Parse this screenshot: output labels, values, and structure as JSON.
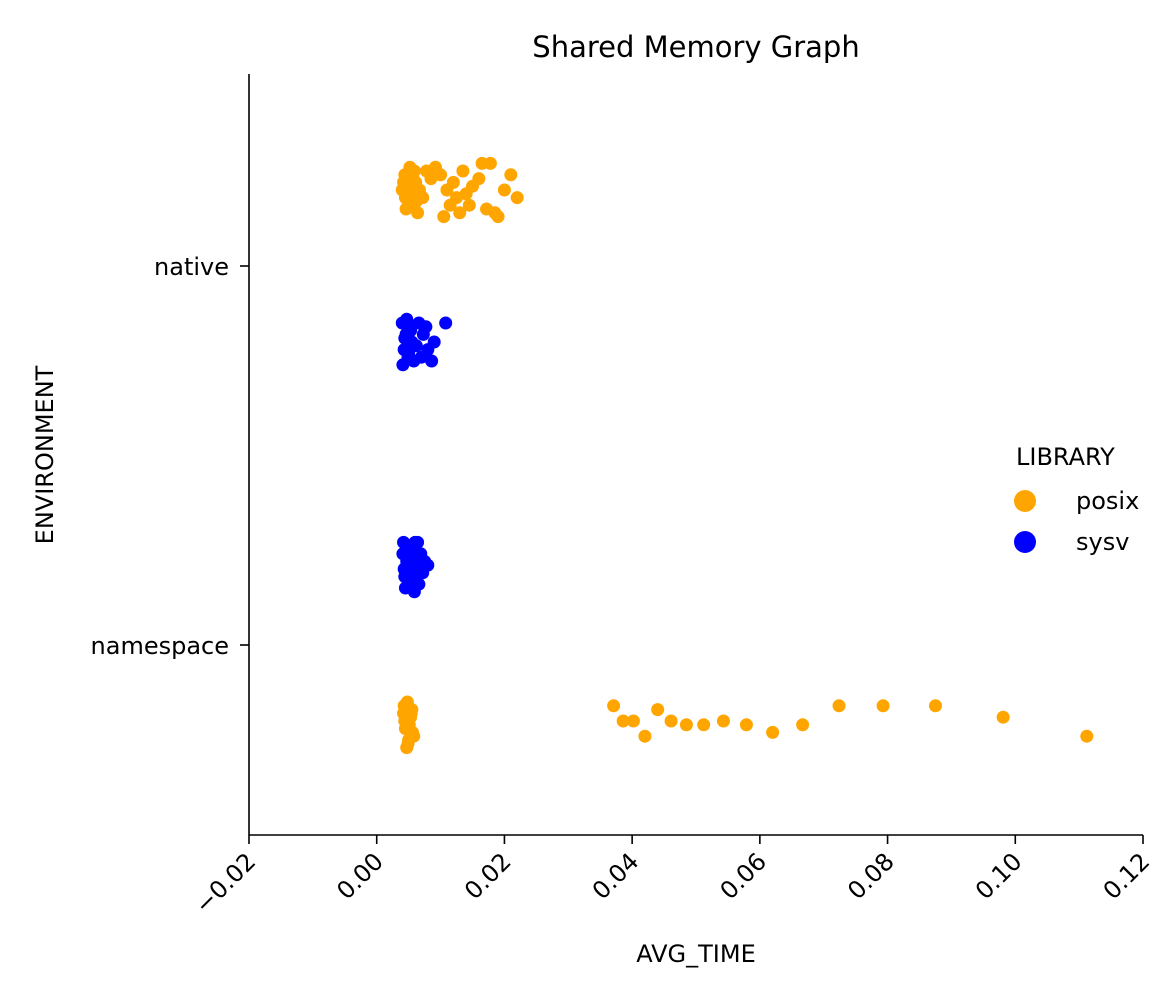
{
  "chart_data": {
    "type": "scatter",
    "subtype": "strip",
    "title": "Shared Memory Graph",
    "xlabel": "AVG_TIME",
    "ylabel": "ENVIRONMENT",
    "xlim": [
      -0.02,
      0.12
    ],
    "x_ticks": [
      "−0.02",
      "0.00",
      "0.02",
      "0.04",
      "0.06",
      "0.08",
      "0.10",
      "0.12"
    ],
    "x_tick_values": [
      -0.02,
      0.0,
      0.02,
      0.04,
      0.06,
      0.08,
      0.1,
      0.12
    ],
    "categories": [
      "native",
      "namespace"
    ],
    "grid": false,
    "legend": {
      "title": "LIBRARY",
      "placement": "center-right"
    },
    "series": [
      {
        "name": "posix",
        "color": "#FFA500",
        "points": [
          [
            "native",
            0.0042,
            -0.22
          ],
          [
            "native",
            0.0045,
            -0.18
          ],
          [
            "native",
            0.0048,
            -0.24
          ],
          [
            "native",
            0.005,
            -0.16
          ],
          [
            "native",
            0.0053,
            -0.21
          ],
          [
            "native",
            0.0056,
            -0.19
          ],
          [
            "native",
            0.0059,
            -0.25
          ],
          [
            "native",
            0.0062,
            -0.17
          ],
          [
            "native",
            0.004,
            -0.2
          ],
          [
            "native",
            0.0046,
            -0.15
          ],
          [
            "native",
            0.0052,
            -0.26
          ],
          [
            "native",
            0.0057,
            -0.23
          ],
          [
            "native",
            0.0064,
            -0.14
          ],
          [
            "native",
            0.0044,
            -0.24
          ],
          [
            "native",
            0.0049,
            -0.18
          ],
          [
            "native",
            0.0055,
            -0.16
          ],
          [
            "native",
            0.0061,
            -0.22
          ],
          [
            "native",
            0.0067,
            -0.2
          ],
          [
            "native",
            0.0072,
            -0.18
          ],
          [
            "native",
            0.0078,
            -0.25
          ],
          [
            "native",
            0.0085,
            -0.23
          ],
          [
            "native",
            0.0092,
            -0.26
          ],
          [
            "native",
            0.01,
            -0.24
          ],
          [
            "native",
            0.0105,
            -0.13
          ],
          [
            "native",
            0.011,
            -0.2
          ],
          [
            "native",
            0.0115,
            -0.16
          ],
          [
            "native",
            0.012,
            -0.22
          ],
          [
            "native",
            0.0125,
            -0.18
          ],
          [
            "native",
            0.013,
            -0.14
          ],
          [
            "native",
            0.0135,
            -0.25
          ],
          [
            "native",
            0.014,
            -0.19
          ],
          [
            "native",
            0.0145,
            -0.16
          ],
          [
            "native",
            0.015,
            -0.21
          ],
          [
            "native",
            0.016,
            -0.23
          ],
          [
            "native",
            0.0165,
            -0.27
          ],
          [
            "native",
            0.0172,
            -0.15
          ],
          [
            "native",
            0.0178,
            -0.27
          ],
          [
            "native",
            0.0185,
            -0.14
          ],
          [
            "native",
            0.019,
            -0.13
          ],
          [
            "native",
            0.02,
            -0.2
          ],
          [
            "native",
            0.021,
            -0.24
          ],
          [
            "native",
            0.022,
            -0.18
          ],
          [
            "namespace",
            0.0042,
            0.18
          ],
          [
            "namespace",
            0.0045,
            0.22
          ],
          [
            "namespace",
            0.0048,
            0.15
          ],
          [
            "namespace",
            0.005,
            0.25
          ],
          [
            "namespace",
            0.0053,
            0.19
          ],
          [
            "namespace",
            0.0056,
            0.23
          ],
          [
            "namespace",
            0.0043,
            0.16
          ],
          [
            "namespace",
            0.0047,
            0.27
          ],
          [
            "namespace",
            0.0051,
            0.21
          ],
          [
            "namespace",
            0.0055,
            0.17
          ],
          [
            "namespace",
            0.0058,
            0.24
          ],
          [
            "namespace",
            0.0044,
            0.2
          ],
          [
            "namespace",
            0.0049,
            0.26
          ],
          [
            "namespace",
            0.0054,
            0.18
          ],
          [
            "namespace",
            0.0371,
            0.16
          ],
          [
            "namespace",
            0.0386,
            0.2
          ],
          [
            "namespace",
            0.0402,
            0.2
          ],
          [
            "namespace",
            0.042,
            0.24
          ],
          [
            "namespace",
            0.044,
            0.17
          ],
          [
            "namespace",
            0.0461,
            0.2
          ],
          [
            "namespace",
            0.0485,
            0.21
          ],
          [
            "namespace",
            0.0512,
            0.21
          ],
          [
            "namespace",
            0.0543,
            0.2
          ],
          [
            "namespace",
            0.0579,
            0.21
          ],
          [
            "namespace",
            0.062,
            0.23
          ],
          [
            "namespace",
            0.0667,
            0.21
          ],
          [
            "namespace",
            0.0724,
            0.16
          ],
          [
            "namespace",
            0.0793,
            0.16
          ],
          [
            "namespace",
            0.0875,
            0.16
          ],
          [
            "namespace",
            0.0981,
            0.19
          ],
          [
            "namespace",
            0.1112,
            0.24
          ]
        ]
      },
      {
        "name": "sysv",
        "color": "#0000FF",
        "points": [
          [
            "native",
            0.004,
            0.15
          ],
          [
            "native",
            0.0043,
            0.22
          ],
          [
            "native",
            0.0046,
            0.18
          ],
          [
            "native",
            0.0049,
            0.24
          ],
          [
            "native",
            0.0052,
            0.16
          ],
          [
            "native",
            0.0055,
            0.2
          ],
          [
            "native",
            0.0041,
            0.26
          ],
          [
            "native",
            0.0044,
            0.19
          ],
          [
            "native",
            0.0047,
            0.14
          ],
          [
            "native",
            0.005,
            0.23
          ],
          [
            "native",
            0.0053,
            0.17
          ],
          [
            "native",
            0.0058,
            0.25
          ],
          [
            "native",
            0.0062,
            0.21
          ],
          [
            "native",
            0.0066,
            0.15
          ],
          [
            "native",
            0.007,
            0.24
          ],
          [
            "native",
            0.0073,
            0.18
          ],
          [
            "native",
            0.0077,
            0.16
          ],
          [
            "native",
            0.008,
            0.22
          ],
          [
            "native",
            0.0086,
            0.25
          ],
          [
            "native",
            0.009,
            0.2
          ],
          [
            "native",
            0.0108,
            0.15
          ],
          [
            "namespace",
            0.0041,
            -0.24
          ],
          [
            "namespace",
            0.0044,
            -0.18
          ],
          [
            "namespace",
            0.0047,
            -0.22
          ],
          [
            "namespace",
            0.005,
            -0.16
          ],
          [
            "namespace",
            0.0053,
            -0.25
          ],
          [
            "namespace",
            0.0056,
            -0.2
          ],
          [
            "namespace",
            0.0059,
            -0.14
          ],
          [
            "namespace",
            0.0042,
            -0.27
          ],
          [
            "namespace",
            0.0045,
            -0.15
          ],
          [
            "namespace",
            0.0048,
            -0.26
          ],
          [
            "namespace",
            0.0051,
            -0.19
          ],
          [
            "namespace",
            0.0054,
            -0.23
          ],
          [
            "namespace",
            0.0057,
            -0.17
          ],
          [
            "namespace",
            0.006,
            -0.27
          ],
          [
            "namespace",
            0.0063,
            -0.21
          ],
          [
            "namespace",
            0.0066,
            -0.16
          ],
          [
            "namespace",
            0.0069,
            -0.24
          ],
          [
            "namespace",
            0.0072,
            -0.19
          ],
          [
            "namespace",
            0.0075,
            -0.22
          ],
          [
            "namespace",
            0.008,
            -0.21
          ],
          [
            "namespace",
            0.0043,
            -0.2
          ],
          [
            "namespace",
            0.0049,
            -0.23
          ],
          [
            "namespace",
            0.0055,
            -0.18
          ],
          [
            "namespace",
            0.0061,
            -0.25
          ],
          [
            "namespace",
            0.0064,
            -0.27
          ]
        ]
      }
    ]
  }
}
